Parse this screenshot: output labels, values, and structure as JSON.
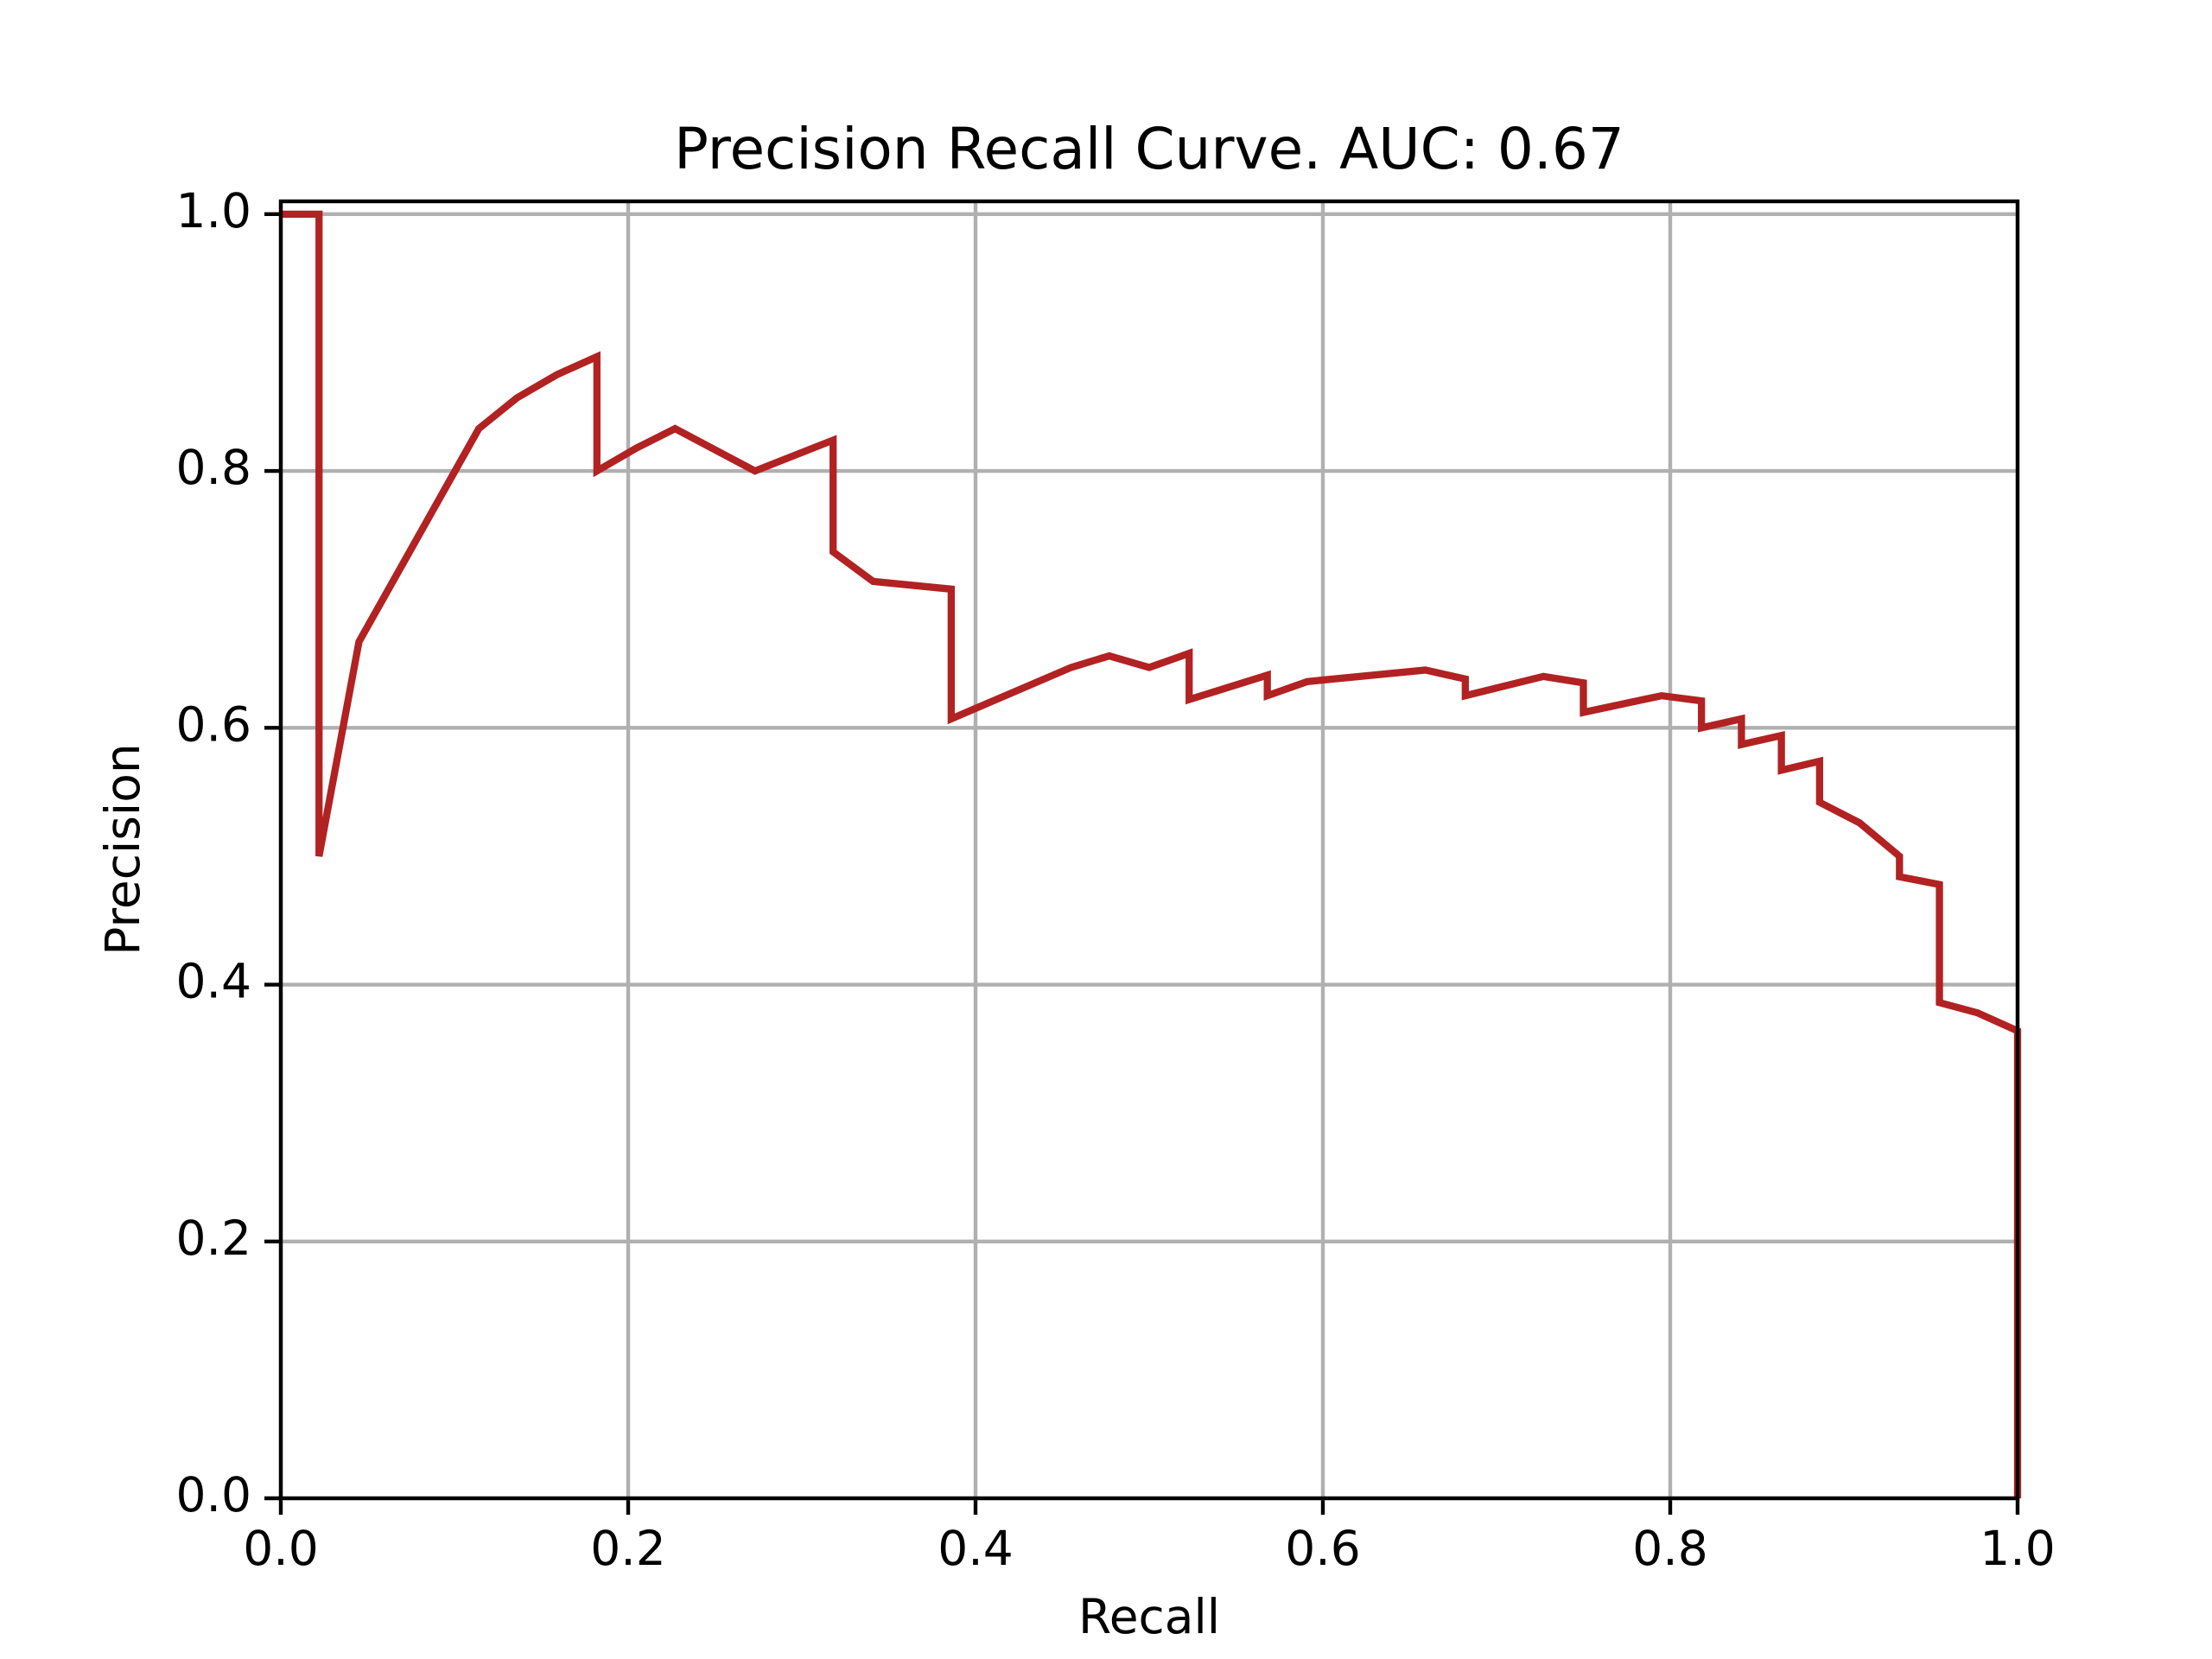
{
  "chart_data": {
    "type": "line",
    "title": "Precision Recall Curve. AUC: 0.67",
    "x_label": "Recall",
    "y_label": "Precision",
    "x": [
      0,
      0.022,
      0.022,
      0.045,
      0.114,
      0.136,
      0.159,
      0.182,
      0.182,
      0.205,
      0.227,
      0.273,
      0.318,
      0.318,
      0.341,
      0.386,
      0.386,
      0.455,
      0.477,
      0.5,
      0.523,
      0.523,
      0.568,
      0.568,
      0.591,
      0.659,
      0.682,
      0.682,
      0.727,
      0.75,
      0.75,
      0.795,
      0.818,
      0.818,
      0.841,
      0.841,
      0.864,
      0.864,
      0.886,
      0.886,
      0.909,
      0.932,
      0.932,
      0.955,
      0.955,
      0.977,
      1.0,
      1.0
    ],
    "values": [
      1.0,
      1.0,
      0.5,
      0.667,
      0.833,
      0.857,
      0.875,
      0.889,
      0.8,
      0.818,
      0.833,
      0.8,
      0.824,
      0.737,
      0.714,
      0.708,
      0.607,
      0.647,
      0.656,
      0.647,
      0.658,
      0.622,
      0.641,
      0.625,
      0.636,
      0.645,
      0.638,
      0.625,
      0.64,
      0.635,
      0.612,
      0.625,
      0.621,
      0.6,
      0.607,
      0.587,
      0.594,
      0.567,
      0.574,
      0.542,
      0.526,
      0.5,
      0.484,
      0.478,
      0.386,
      0.378,
      0.364,
      0.0
    ],
    "color": "#b22222",
    "xlim": [
      0,
      1
    ],
    "ylim": [
      0,
      1.01
    ],
    "xticks": [
      {
        "value": 0,
        "label": "0.0"
      },
      0.2,
      0.4,
      0.6,
      0.8,
      {
        "value": 1,
        "label": "1.0"
      }
    ],
    "yticks": [
      {
        "value": 0,
        "label": "0.0"
      },
      0.2,
      0.4,
      0.6,
      0.8,
      {
        "value": 1,
        "label": "1.0"
      }
    ],
    "grid": true
  }
}
